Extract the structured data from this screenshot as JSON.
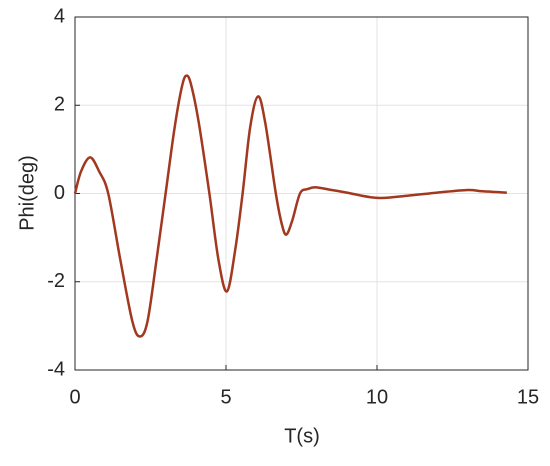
{
  "chart_data": {
    "type": "line",
    "x_label": "T(s)",
    "y_label": "Phi(deg)",
    "x": [
      0,
      0.2,
      0.5,
      0.8,
      1.1,
      1.5,
      1.9,
      2.15,
      2.4,
      2.7,
      3.0,
      3.3,
      3.55,
      3.7,
      3.85,
      4.1,
      4.45,
      4.75,
      5.03,
      5.3,
      5.55,
      5.8,
      6.06,
      6.3,
      6.65,
      6.85,
      7.0,
      7.2,
      7.45,
      7.7,
      7.98,
      8.5,
      9,
      10,
      11,
      12,
      13,
      13.5,
      14.3
    ],
    "series": [
      {
        "color": "#a2381f",
        "values": [
          0,
          0.5,
          0.82,
          0.5,
          0,
          -1.5,
          -2.9,
          -3.24,
          -2.9,
          -1.5,
          0,
          1.5,
          2.45,
          2.67,
          2.45,
          1.6,
          0,
          -1.5,
          -2.22,
          -1.3,
          0,
          1.5,
          2.2,
          1.6,
          0,
          -0.7,
          -0.93,
          -0.6,
          0,
          0.1,
          0.14,
          0.08,
          0.02,
          -0.1,
          -0.05,
          0.02,
          0.08,
          0.05,
          0.02
        ]
      }
    ],
    "xlim": [
      0,
      15
    ],
    "xticks": [
      0,
      5,
      10,
      15
    ],
    "ylim": [
      -4,
      4
    ],
    "yticks": [
      -4,
      -2,
      0,
      2,
      4
    ],
    "grid": true
  }
}
